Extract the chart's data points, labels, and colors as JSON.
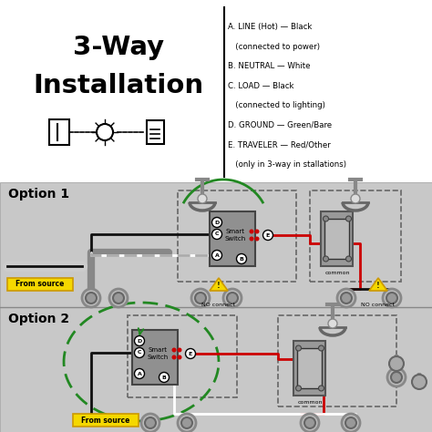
{
  "title_line1": "3-Way",
  "title_line2": "Installation",
  "bg_color": "#ffffff",
  "panel1_color": "#cccccc",
  "panel2_color": "#cccccc",
  "legend_items": [
    "A. LINE (Hot) — Black",
    "   (connected to power)",
    "B. NEUTRAL — White",
    "C. LOAD — Black",
    "   (connected to lighting)",
    "D. GROUND — Green/Bare",
    "E. TRAVELER — Red/Other",
    "   (only in 3-way in stallations)"
  ],
  "option1_label": "Option 1",
  "option2_label": "Option 2",
  "from_source": "From source",
  "no_connect": "NO connect",
  "common_label": "common",
  "smart_switch_label": "Smart\nSwitch",
  "wire_black": "#111111",
  "wire_white": "#ffffff",
  "wire_red": "#cc0000",
  "wire_green": "#228822",
  "switch_gray": "#888888",
  "panel_gray": "#c8c8c8",
  "yellow": "#f5d800",
  "yellow_border": "#cc9900"
}
